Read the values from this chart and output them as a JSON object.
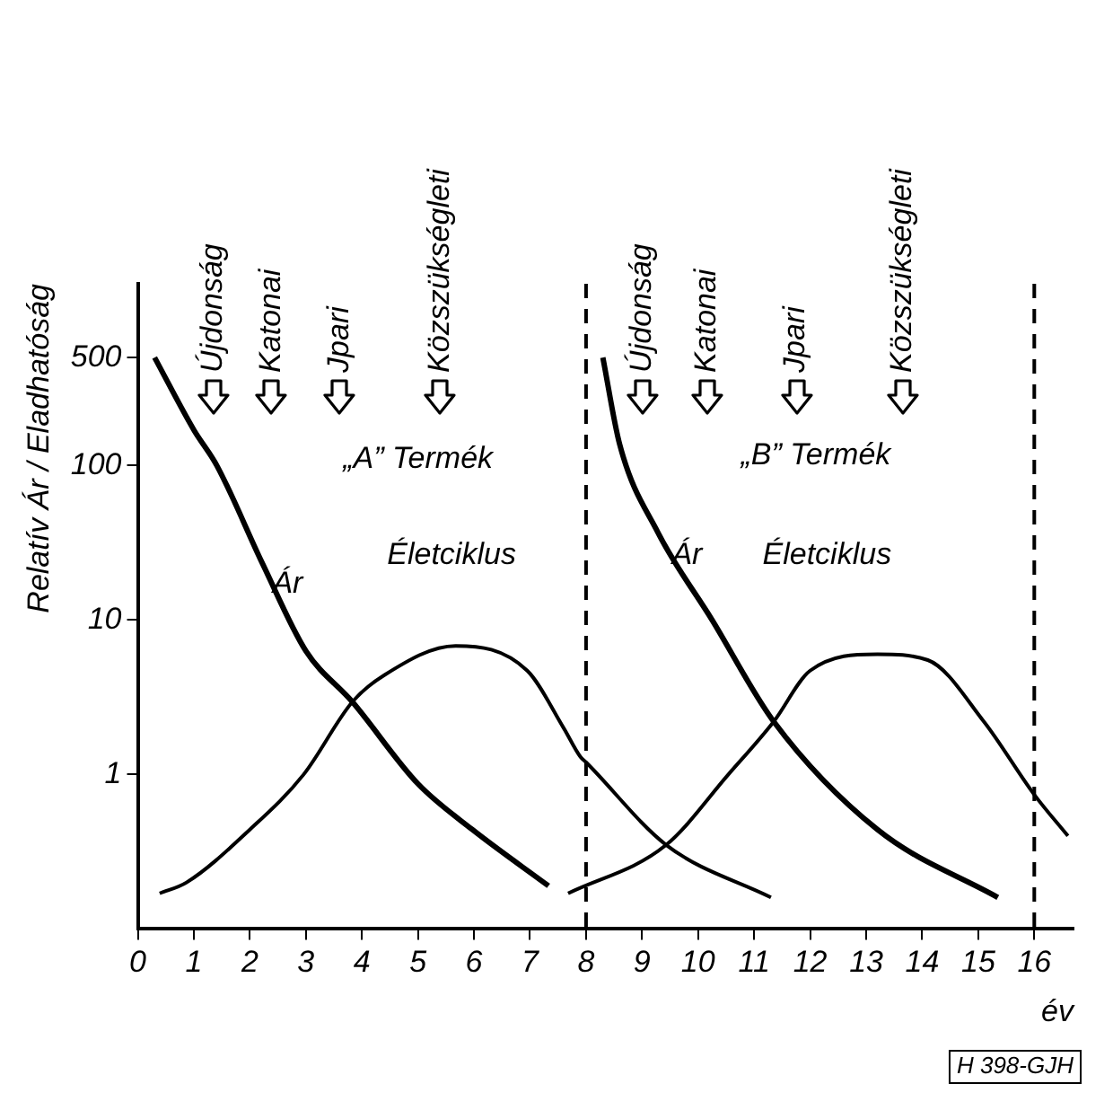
{
  "chart_data": {
    "type": "line",
    "ylabel": "Relatív Ár / Eladhatóság",
    "xlabel": "év",
    "log": "y",
    "grid": false,
    "legend": false,
    "marker": "none",
    "line_style": "solid",
    "xlim": [
      0,
      16.7
    ],
    "xticks": [
      0,
      1,
      2,
      3,
      4,
      5,
      6,
      7,
      8,
      9,
      10,
      11,
      12,
      13,
      14,
      15,
      16
    ],
    "ylim": [
      0.1,
      1500
    ],
    "yticks": [
      1,
      10,
      100,
      500
    ],
    "series": [
      {
        "color": "#000000",
        "x": [
          0.3,
          1.0,
          1.41,
          2.23,
          3.0,
          3.83,
          5.0,
          5.97,
          7.33
        ],
        "values": [
          500,
          170,
          100,
          23,
          6.3,
          2.95,
          0.87,
          0.44,
          0.19
        ]
      },
      {
        "color": "#000000",
        "x": [
          0.39,
          0.87,
          2.0,
          2.96,
          3.83,
          4.4,
          5.67,
          6.95,
          7.6,
          7.9,
          8.0,
          9.43,
          11.3
        ],
        "values": [
          0.17,
          0.2,
          0.44,
          1.0,
          2.95,
          4.4,
          6.8,
          4.7,
          2.0,
          1.3,
          1.2,
          0.35,
          0.16
        ]
      },
      {
        "color": "#000000",
        "x": [
          8.3,
          8.6,
          9.28,
          10.25,
          11.35,
          13.2,
          15.35
        ],
        "values": [
          500,
          137,
          37,
          10,
          2.2,
          0.44,
          0.16
        ]
      },
      {
        "color": "#000000",
        "x": [
          7.68,
          9.43,
          10.54,
          11.35,
          12.0,
          13.2,
          14.1,
          15.1,
          16.0,
          16.6
        ],
        "values": [
          0.17,
          0.35,
          1.0,
          2.2,
          4.7,
          6.0,
          5.5,
          2.2,
          0.74,
          0.4
        ]
      }
    ],
    "ref_lines": [
      {
        "axis": "x",
        "value": 8,
        "color": "#000000",
        "line_style": "dashed"
      },
      {
        "axis": "x",
        "value": 16,
        "color": "#000000",
        "line_style": "dashed"
      }
    ],
    "annotations": [
      "Újdonság",
      "Katonai",
      "Jpari",
      "Közszükségleti",
      "Újdonság",
      "Katonai",
      "Jpari",
      "Közszükségleti",
      "„A” Termék",
      "„B” Termék",
      "Ár",
      "Ár",
      "Életciklus",
      "Életciklus",
      "H 398-GJH"
    ]
  }
}
